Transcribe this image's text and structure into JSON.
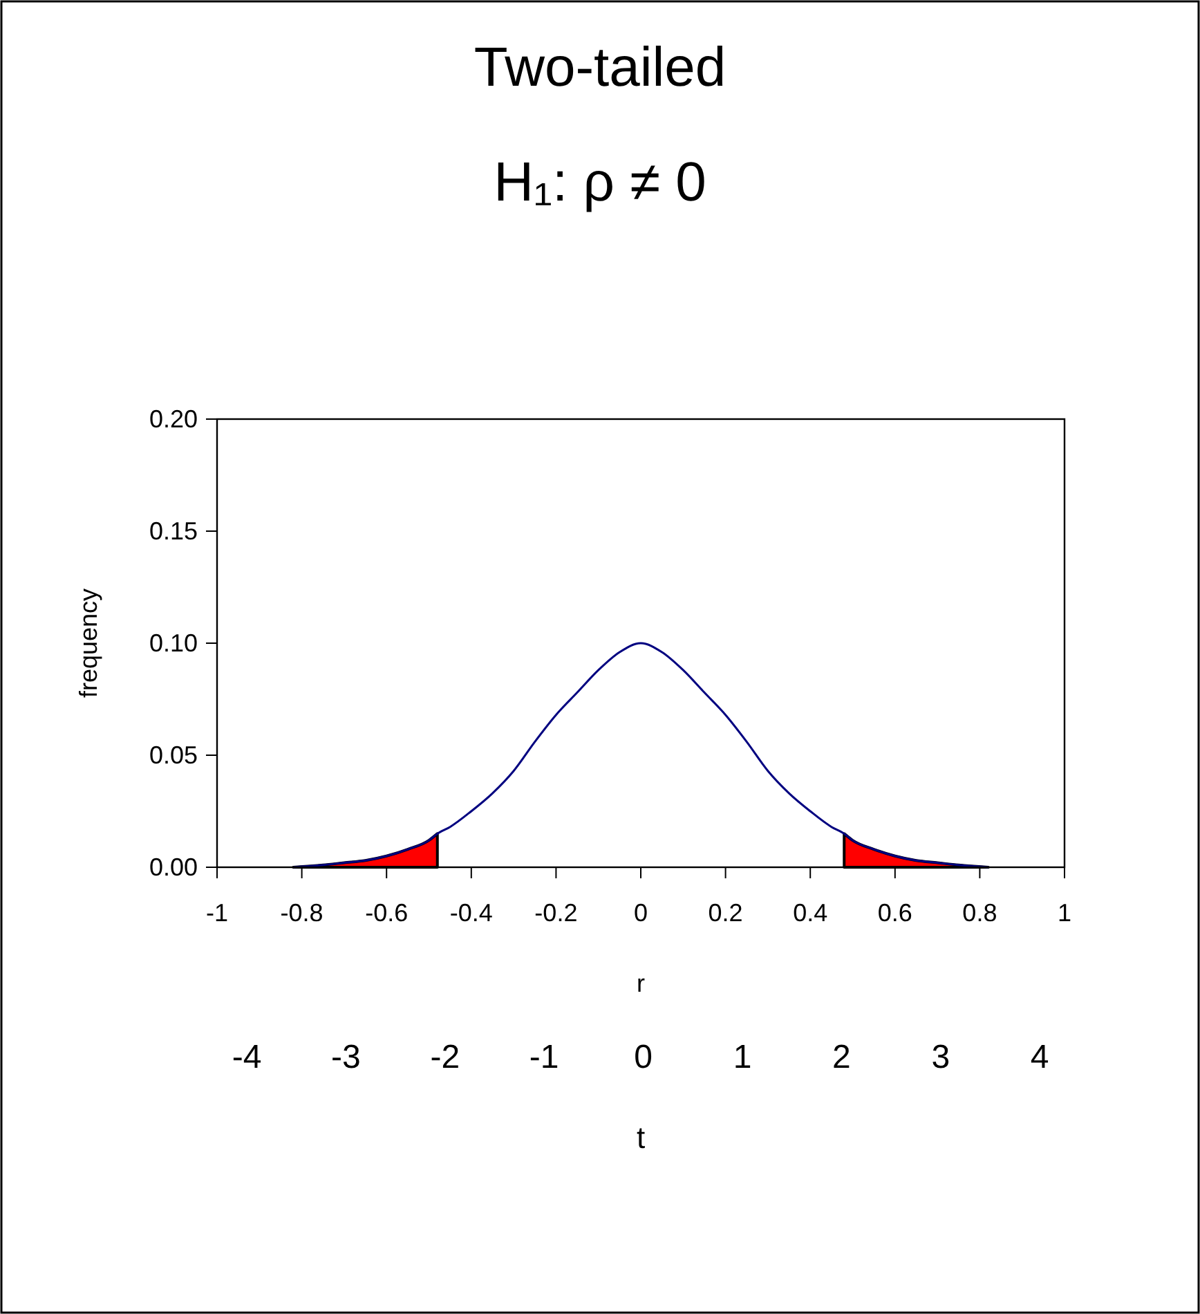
{
  "chart_data": {
    "type": "line",
    "title": "Two-tailed",
    "subtitle": "H₁: ρ ≠ 0",
    "xlabel": "r",
    "ylabel": "frequency",
    "x2label": "t",
    "xlim": [
      -1,
      1
    ],
    "xticks": [
      -1,
      -0.8,
      -0.6,
      -0.4,
      -0.2,
      0,
      0.2,
      0.4,
      0.6,
      0.8,
      1
    ],
    "ylim": [
      0,
      0.2
    ],
    "yticks": [
      {
        "value": 0,
        "label": "0.00"
      },
      {
        "value": 0.05,
        "label": "0.05"
      },
      {
        "value": 0.1,
        "label": "0.10"
      },
      {
        "value": 0.15,
        "label": "0.15"
      },
      {
        "value": 0.2,
        "label": "0.20"
      }
    ],
    "x2lim": [
      -4.3,
      4.25
    ],
    "x2ticks": [
      -4,
      -3,
      -2,
      -1,
      0,
      1,
      2,
      3,
      4
    ],
    "grid": false,
    "marker": "none",
    "line_style": "solid",
    "series": [
      {
        "type": "area",
        "color": "#ff0000",
        "x": [
          -0.82,
          -0.75,
          -0.7,
          -0.65,
          -0.6,
          -0.55,
          -0.5,
          -0.48
        ],
        "values": [
          0,
          0.001,
          0.002,
          0.003,
          0.005,
          0.008,
          0.012,
          0.015
        ]
      },
      {
        "type": "area",
        "color": "#ff0000",
        "x": [
          0.48,
          0.5,
          0.55,
          0.6,
          0.65,
          0.7,
          0.75,
          0.82
        ],
        "values": [
          0.015,
          0.012,
          0.008,
          0.005,
          0.003,
          0.002,
          0.001,
          0
        ]
      },
      {
        "color": "#000080",
        "x": [
          -0.82,
          -0.75,
          -0.7,
          -0.65,
          -0.6,
          -0.55,
          -0.5,
          -0.48,
          -0.45,
          -0.4,
          -0.35,
          -0.3,
          -0.25,
          -0.2,
          -0.15,
          -0.1,
          -0.05,
          0,
          0.05,
          0.1,
          0.15,
          0.2,
          0.25,
          0.3,
          0.35,
          0.4,
          0.45,
          0.48,
          0.5,
          0.55,
          0.6,
          0.65,
          0.7,
          0.75,
          0.82
        ],
        "values": [
          0,
          0.001,
          0.002,
          0.003,
          0.005,
          0.008,
          0.012,
          0.015,
          0.018,
          0.025,
          0.033,
          0.043,
          0.056,
          0.068,
          0.078,
          0.088,
          0.096,
          0.1,
          0.096,
          0.088,
          0.078,
          0.068,
          0.056,
          0.043,
          0.033,
          0.025,
          0.018,
          0.015,
          0.012,
          0.008,
          0.005,
          0.003,
          0.002,
          0.001,
          0
        ]
      }
    ]
  }
}
